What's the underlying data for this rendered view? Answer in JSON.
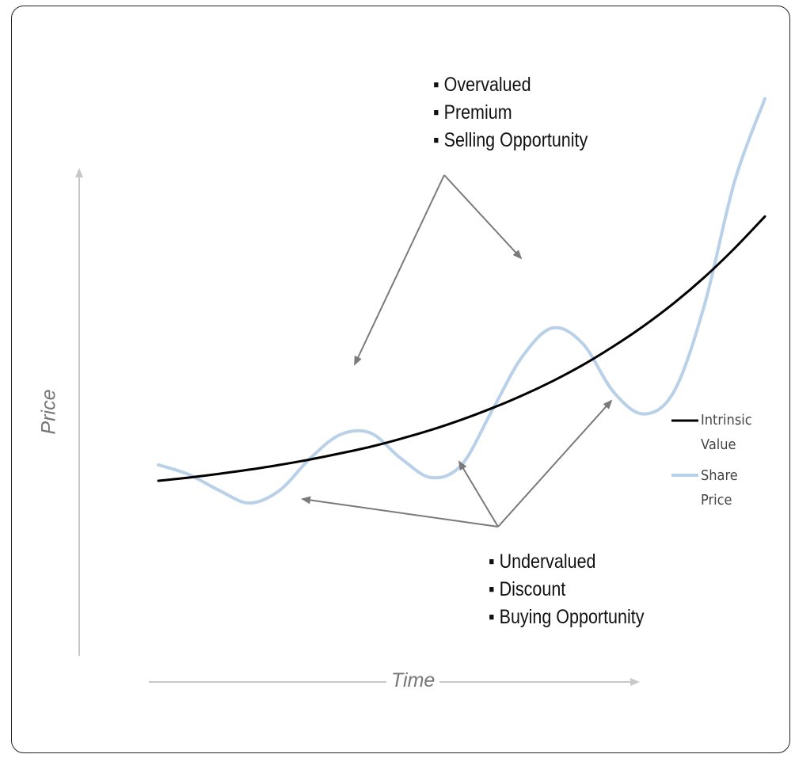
{
  "chart_data": {
    "type": "line",
    "title": "",
    "xlabel": "Time",
    "ylabel": "Price",
    "grid": false,
    "legend_position": "right",
    "x": [
      0,
      5,
      10,
      15,
      20,
      25,
      30,
      35,
      40,
      45,
      50,
      55,
      60,
      65,
      70,
      75,
      80,
      85,
      90,
      95,
      100
    ],
    "series": [
      {
        "name": "Intrinsic Value",
        "color": "#000000",
        "values": [
          10,
          11,
          12.2,
          13.5,
          15,
          16.7,
          18.6,
          20.7,
          23.2,
          26,
          29.2,
          32.8,
          36.8,
          41.3,
          46.4,
          52.2,
          58.6,
          65.8,
          73.9,
          83,
          93
        ]
      },
      {
        "name": "Share Price",
        "color": "#b8d0e8",
        "values": [
          15,
          12,
          7,
          3,
          7,
          17,
          24.5,
          25,
          17,
          11,
          15,
          32,
          49,
          58,
          53,
          38,
          31,
          38,
          65,
          104,
          130
        ]
      }
    ],
    "annotations": [
      {
        "id": "overvalued",
        "lines": [
          "Overvalued",
          "Premium",
          "Selling Opportunity"
        ]
      },
      {
        "id": "undervalued",
        "lines": [
          "Undervalued",
          "Discount",
          "Buying Opportunity"
        ]
      }
    ],
    "legend": [
      {
        "line1": "Intrinsic",
        "line2": "Value",
        "color": "#000000"
      },
      {
        "line1": "Share",
        "line2": "Price",
        "color": "#b8d0e8"
      }
    ]
  }
}
